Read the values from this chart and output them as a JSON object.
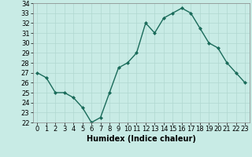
{
  "x": [
    0,
    1,
    2,
    3,
    4,
    5,
    6,
    7,
    8,
    9,
    10,
    11,
    12,
    13,
    14,
    15,
    16,
    17,
    18,
    19,
    20,
    21,
    22,
    23
  ],
  "y": [
    27.0,
    26.5,
    25.0,
    25.0,
    24.5,
    23.5,
    22.0,
    22.5,
    25.0,
    27.5,
    28.0,
    29.0,
    32.0,
    31.0,
    32.5,
    33.0,
    33.5,
    33.0,
    31.5,
    30.0,
    29.5,
    28.0,
    27.0,
    26.0
  ],
  "xlabel": "Humidex (Indice chaleur)",
  "ylim": [
    22,
    34
  ],
  "xlim": [
    -0.5,
    23.5
  ],
  "yticks": [
    22,
    23,
    24,
    25,
    26,
    27,
    28,
    29,
    30,
    31,
    32,
    33,
    34
  ],
  "xticks": [
    0,
    1,
    2,
    3,
    4,
    5,
    6,
    7,
    8,
    9,
    10,
    11,
    12,
    13,
    14,
    15,
    16,
    17,
    18,
    19,
    20,
    21,
    22,
    23
  ],
  "line_color": "#1a6b5a",
  "bg_color": "#c8ebe5",
  "grid_color": "#b0d8d0",
  "xlabel_fontsize": 7,
  "tick_fontsize": 6,
  "title": ""
}
